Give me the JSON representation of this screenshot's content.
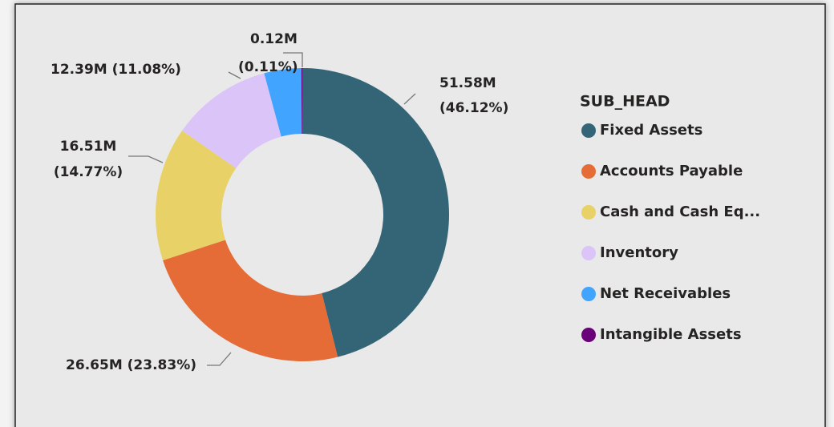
{
  "chart_data": {
    "type": "donut",
    "legend_title": "SUB_HEAD",
    "categories": [
      "Fixed Assets",
      "Accounts Payable",
      "Cash and Cash Eq...",
      "Inventory",
      "Net Receivables",
      "Intangible Assets"
    ],
    "values": [
      51.58,
      26.65,
      16.51,
      12.39,
      4.57,
      0.12
    ],
    "value_labels": [
      "51.58M (46.12%)",
      "26.65M (23.83%)",
      "16.51M (14.77%)",
      "12.39M (11.08%)",
      null,
      "0.12M (0.11%)"
    ],
    "colors": [
      "#336577",
      "#E66C37",
      "#E8D166",
      "#DBC4F8",
      "#41A4FF",
      "#6B007B"
    ],
    "legend": "right"
  }
}
